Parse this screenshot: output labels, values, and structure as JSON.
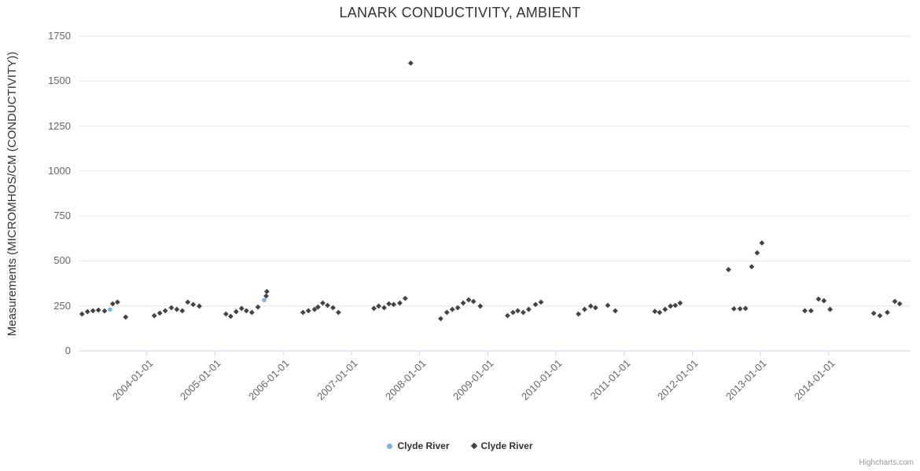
{
  "credits": {
    "label": "Highcharts.com"
  },
  "chart_data": {
    "type": "scatter",
    "title": "LANARK CONDUCTIVITY, AMBIENT",
    "xlabel": "",
    "ylabel": "Measurements (MICROMHOS/CM (CONDUCTIVITY))",
    "ylim": [
      0,
      1750
    ],
    "yticks": [
      0,
      250,
      500,
      750,
      1000,
      1250,
      1500,
      1750
    ],
    "xlim": [
      2003.0,
      2015.2
    ],
    "xticks": [
      {
        "value": 2004,
        "label": "2004-01-01"
      },
      {
        "value": 2005,
        "label": "2005-01-01"
      },
      {
        "value": 2006,
        "label": "2006-01-01"
      },
      {
        "value": 2007,
        "label": "2007-01-01"
      },
      {
        "value": 2008,
        "label": "2008-01-01"
      },
      {
        "value": 2009,
        "label": "2009-01-01"
      },
      {
        "value": 2010,
        "label": "2010-01-01"
      },
      {
        "value": 2011,
        "label": "2011-01-01"
      },
      {
        "value": 2012,
        "label": "2012-01-01"
      },
      {
        "value": 2013,
        "label": "2013-01-01"
      },
      {
        "value": 2014,
        "label": "2014-01-01"
      }
    ],
    "grid": "horizontal",
    "legend_position": "bottom-center",
    "series": [
      {
        "name": "Clyde River",
        "marker": "circle",
        "color": "#7cb5ec",
        "points": [
          [
            2003.46,
            230
          ],
          [
            2005.72,
            282
          ]
        ]
      },
      {
        "name": "Clyde River",
        "marker": "diamond",
        "color": "#434348",
        "points": [
          [
            2003.05,
            205
          ],
          [
            2003.13,
            218
          ],
          [
            2003.21,
            223
          ],
          [
            2003.29,
            227
          ],
          [
            2003.38,
            222
          ],
          [
            2003.5,
            262
          ],
          [
            2003.57,
            271
          ],
          [
            2003.69,
            188
          ],
          [
            2004.11,
            196
          ],
          [
            2004.19,
            210
          ],
          [
            2004.27,
            223
          ],
          [
            2004.36,
            240
          ],
          [
            2004.44,
            231
          ],
          [
            2004.52,
            223
          ],
          [
            2004.6,
            271
          ],
          [
            2004.68,
            258
          ],
          [
            2004.77,
            249
          ],
          [
            2005.16,
            205
          ],
          [
            2005.23,
            192
          ],
          [
            2005.31,
            218
          ],
          [
            2005.39,
            236
          ],
          [
            2005.46,
            223
          ],
          [
            2005.54,
            214
          ],
          [
            2005.63,
            244
          ],
          [
            2005.75,
            305
          ],
          [
            2005.76,
            330
          ],
          [
            2006.29,
            214
          ],
          [
            2006.37,
            223
          ],
          [
            2006.46,
            231
          ],
          [
            2006.51,
            244
          ],
          [
            2006.58,
            266
          ],
          [
            2006.65,
            253
          ],
          [
            2006.73,
            240
          ],
          [
            2006.81,
            214
          ],
          [
            2007.33,
            236
          ],
          [
            2007.4,
            249
          ],
          [
            2007.48,
            240
          ],
          [
            2007.55,
            262
          ],
          [
            2007.62,
            258
          ],
          [
            2007.71,
            266
          ],
          [
            2007.79,
            292
          ],
          [
            2007.87,
            1600
          ],
          [
            2008.31,
            179
          ],
          [
            2008.4,
            214
          ],
          [
            2008.48,
            231
          ],
          [
            2008.56,
            240
          ],
          [
            2008.64,
            266
          ],
          [
            2008.72,
            284
          ],
          [
            2008.79,
            275
          ],
          [
            2008.89,
            249
          ],
          [
            2009.29,
            196
          ],
          [
            2009.37,
            214
          ],
          [
            2009.44,
            223
          ],
          [
            2009.52,
            214
          ],
          [
            2009.6,
            231
          ],
          [
            2009.7,
            258
          ],
          [
            2009.78,
            271
          ],
          [
            2010.33,
            205
          ],
          [
            2010.42,
            231
          ],
          [
            2010.51,
            249
          ],
          [
            2010.58,
            240
          ],
          [
            2010.76,
            253
          ],
          [
            2010.87,
            223
          ],
          [
            2011.45,
            220
          ],
          [
            2011.52,
            214
          ],
          [
            2011.6,
            231
          ],
          [
            2011.68,
            249
          ],
          [
            2011.75,
            253
          ],
          [
            2011.82,
            266
          ],
          [
            2012.53,
            452
          ],
          [
            2012.61,
            234
          ],
          [
            2012.7,
            234
          ],
          [
            2012.78,
            236
          ],
          [
            2012.87,
            468
          ],
          [
            2012.95,
            545
          ],
          [
            2013.02,
            600
          ],
          [
            2013.65,
            223
          ],
          [
            2013.74,
            223
          ],
          [
            2013.85,
            288
          ],
          [
            2013.93,
            279
          ],
          [
            2014.02,
            231
          ],
          [
            2014.66,
            209
          ],
          [
            2014.75,
            196
          ],
          [
            2014.86,
            214
          ],
          [
            2014.97,
            275
          ],
          [
            2015.04,
            262
          ]
        ]
      }
    ]
  }
}
